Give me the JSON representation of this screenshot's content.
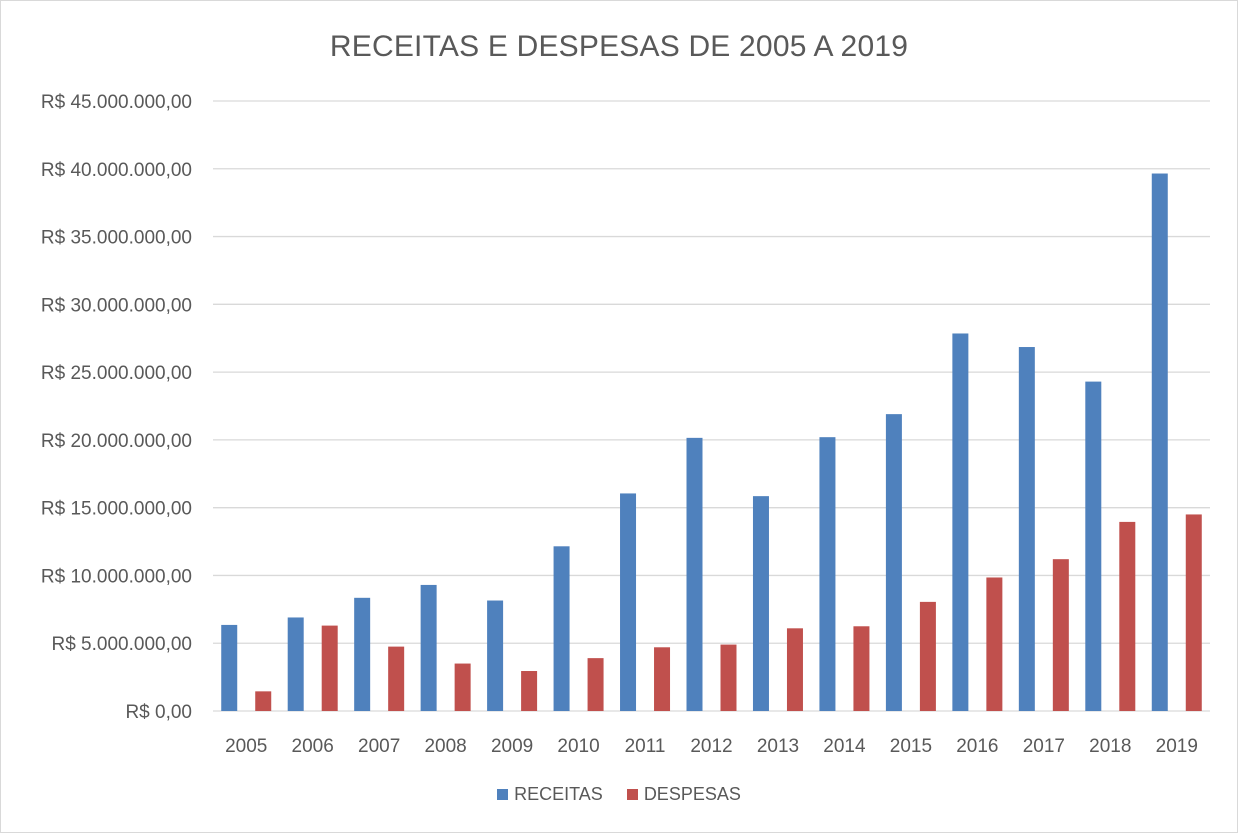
{
  "chart_data": {
    "type": "bar",
    "title": "RECEITAS E DESPESAS DE 2005 A 2019",
    "xlabel": "",
    "ylabel": "",
    "categories": [
      "2005",
      "2006",
      "2007",
      "2008",
      "2009",
      "2010",
      "2011",
      "2012",
      "2013",
      "2014",
      "2015",
      "2016",
      "2017",
      "2018",
      "2019"
    ],
    "series": [
      {
        "name": "RECEITAS",
        "color": "#4f81bd",
        "values": [
          6350000,
          6900000,
          8350000,
          9300000,
          8150000,
          12150000,
          16050000,
          20150000,
          15850000,
          20200000,
          21900000,
          27850000,
          26850000,
          24300000,
          39650000
        ]
      },
      {
        "name": "DESPESAS",
        "color": "#c0504d",
        "values": [
          1450000,
          6300000,
          4750000,
          3500000,
          2950000,
          3900000,
          4700000,
          4900000,
          6100000,
          6250000,
          8050000,
          9850000,
          11200000,
          13950000,
          14500000
        ]
      }
    ],
    "ylim": [
      0,
      45000000
    ],
    "yticks": [
      {
        "value": 0,
        "label": "R$ 0,00"
      },
      {
        "value": 5000000,
        "label": "R$ 5.000.000,00"
      },
      {
        "value": 10000000,
        "label": "R$ 10.000.000,00"
      },
      {
        "value": 15000000,
        "label": "R$ 15.000.000,00"
      },
      {
        "value": 20000000,
        "label": "R$ 20.000.000,00"
      },
      {
        "value": 25000000,
        "label": "R$ 25.000.000,00"
      },
      {
        "value": 30000000,
        "label": "R$ 30.000.000,00"
      },
      {
        "value": 35000000,
        "label": "R$ 35.000.000,00"
      },
      {
        "value": 40000000,
        "label": "R$ 40.000.000,00"
      },
      {
        "value": 45000000,
        "label": "R$ 45.000.000,00"
      }
    ],
    "grid": true,
    "legend_position": "bottom",
    "gridline_color": "#d9d9d9",
    "text_color": "#595959"
  }
}
